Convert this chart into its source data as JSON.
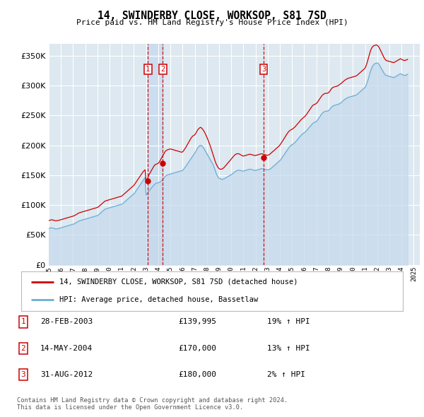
{
  "title": "14, SWINDERBY CLOSE, WORKSOP, S81 7SD",
  "subtitle": "Price paid vs. HM Land Registry's House Price Index (HPI)",
  "ytick_values": [
    0,
    50000,
    100000,
    150000,
    200000,
    250000,
    300000,
    350000
  ],
  "ylim": [
    0,
    370000
  ],
  "xlim_start": 1995.0,
  "xlim_end": 2025.5,
  "background_color": "#dde8f0",
  "grid_color": "#ffffff",
  "transactions": [
    {
      "num": 1,
      "date": "28-FEB-2003",
      "price": 139995,
      "pct": "19%",
      "direction": "↑",
      "x": 2003.15
    },
    {
      "num": 2,
      "date": "14-MAY-2004",
      "price": 170000,
      "pct": "13%",
      "direction": "↑",
      "x": 2004.37
    },
    {
      "num": 3,
      "date": "31-AUG-2012",
      "price": 180000,
      "pct": "2%",
      "direction": "↑",
      "x": 2012.66
    }
  ],
  "red_line_label": "14, SWINDERBY CLOSE, WORKSOP, S81 7SD (detached house)",
  "blue_line_label": "HPI: Average price, detached house, Bassetlaw",
  "footer_line1": "Contains HM Land Registry data © Crown copyright and database right 2024.",
  "footer_line2": "This data is licensed under the Open Government Licence v3.0.",
  "hpi_data_x": [
    1995.0,
    1995.083,
    1995.167,
    1995.25,
    1995.333,
    1995.417,
    1995.5,
    1995.583,
    1995.667,
    1995.75,
    1995.833,
    1995.917,
    1996.0,
    1996.083,
    1996.167,
    1996.25,
    1996.333,
    1996.417,
    1996.5,
    1996.583,
    1996.667,
    1996.75,
    1996.833,
    1996.917,
    1997.0,
    1997.083,
    1997.167,
    1997.25,
    1997.333,
    1997.417,
    1997.5,
    1997.583,
    1997.667,
    1997.75,
    1997.833,
    1997.917,
    1998.0,
    1998.083,
    1998.167,
    1998.25,
    1998.333,
    1998.417,
    1998.5,
    1998.583,
    1998.667,
    1998.75,
    1998.833,
    1998.917,
    1999.0,
    1999.083,
    1999.167,
    1999.25,
    1999.333,
    1999.417,
    1999.5,
    1999.583,
    1999.667,
    1999.75,
    1999.833,
    1999.917,
    2000.0,
    2000.083,
    2000.167,
    2000.25,
    2000.333,
    2000.417,
    2000.5,
    2000.583,
    2000.667,
    2000.75,
    2000.833,
    2000.917,
    2001.0,
    2001.083,
    2001.167,
    2001.25,
    2001.333,
    2001.417,
    2001.5,
    2001.583,
    2001.667,
    2001.75,
    2001.833,
    2001.917,
    2002.0,
    2002.083,
    2002.167,
    2002.25,
    2002.333,
    2002.417,
    2002.5,
    2002.583,
    2002.667,
    2002.75,
    2002.833,
    2002.917,
    2003.0,
    2003.083,
    2003.167,
    2003.25,
    2003.333,
    2003.417,
    2003.5,
    2003.583,
    2003.667,
    2003.75,
    2003.833,
    2003.917,
    2004.0,
    2004.083,
    2004.167,
    2004.25,
    2004.333,
    2004.417,
    2004.5,
    2004.583,
    2004.667,
    2004.75,
    2004.833,
    2004.917,
    2005.0,
    2005.083,
    2005.167,
    2005.25,
    2005.333,
    2005.417,
    2005.5,
    2005.583,
    2005.667,
    2005.75,
    2005.833,
    2005.917,
    2006.0,
    2006.083,
    2006.167,
    2006.25,
    2006.333,
    2006.417,
    2006.5,
    2006.583,
    2006.667,
    2006.75,
    2006.833,
    2006.917,
    2007.0,
    2007.083,
    2007.167,
    2007.25,
    2007.333,
    2007.417,
    2007.5,
    2007.583,
    2007.667,
    2007.75,
    2007.833,
    2007.917,
    2008.0,
    2008.083,
    2008.167,
    2008.25,
    2008.333,
    2008.417,
    2008.5,
    2008.583,
    2008.667,
    2008.75,
    2008.833,
    2008.917,
    2009.0,
    2009.083,
    2009.167,
    2009.25,
    2009.333,
    2009.417,
    2009.5,
    2009.583,
    2009.667,
    2009.75,
    2009.833,
    2009.917,
    2010.0,
    2010.083,
    2010.167,
    2010.25,
    2010.333,
    2010.417,
    2010.5,
    2010.583,
    2010.667,
    2010.75,
    2010.833,
    2010.917,
    2011.0,
    2011.083,
    2011.167,
    2011.25,
    2011.333,
    2011.417,
    2011.5,
    2011.583,
    2011.667,
    2011.75,
    2011.833,
    2011.917,
    2012.0,
    2012.083,
    2012.167,
    2012.25,
    2012.333,
    2012.417,
    2012.5,
    2012.583,
    2012.667,
    2012.75,
    2012.833,
    2012.917,
    2013.0,
    2013.083,
    2013.167,
    2013.25,
    2013.333,
    2013.417,
    2013.5,
    2013.583,
    2013.667,
    2013.75,
    2013.833,
    2013.917,
    2014.0,
    2014.083,
    2014.167,
    2014.25,
    2014.333,
    2014.417,
    2014.5,
    2014.583,
    2014.667,
    2014.75,
    2014.833,
    2014.917,
    2015.0,
    2015.083,
    2015.167,
    2015.25,
    2015.333,
    2015.417,
    2015.5,
    2015.583,
    2015.667,
    2015.75,
    2015.833,
    2015.917,
    2016.0,
    2016.083,
    2016.167,
    2016.25,
    2016.333,
    2016.417,
    2016.5,
    2016.583,
    2016.667,
    2016.75,
    2016.833,
    2016.917,
    2017.0,
    2017.083,
    2017.167,
    2017.25,
    2017.333,
    2017.417,
    2017.5,
    2017.583,
    2017.667,
    2017.75,
    2017.833,
    2017.917,
    2018.0,
    2018.083,
    2018.167,
    2018.25,
    2018.333,
    2018.417,
    2018.5,
    2018.583,
    2018.667,
    2018.75,
    2018.833,
    2018.917,
    2019.0,
    2019.083,
    2019.167,
    2019.25,
    2019.333,
    2019.417,
    2019.5,
    2019.583,
    2019.667,
    2019.75,
    2019.833,
    2019.917,
    2020.0,
    2020.083,
    2020.167,
    2020.25,
    2020.333,
    2020.417,
    2020.5,
    2020.583,
    2020.667,
    2020.75,
    2020.833,
    2020.917,
    2021.0,
    2021.083,
    2021.167,
    2021.25,
    2021.333,
    2021.417,
    2021.5,
    2021.583,
    2021.667,
    2021.75,
    2021.833,
    2021.917,
    2022.0,
    2022.083,
    2022.167,
    2022.25,
    2022.333,
    2022.417,
    2022.5,
    2022.583,
    2022.667,
    2022.75,
    2022.833,
    2022.917,
    2023.0,
    2023.083,
    2023.167,
    2023.25,
    2023.333,
    2023.417,
    2023.5,
    2023.583,
    2023.667,
    2023.75,
    2023.833,
    2023.917,
    2024.0,
    2024.083,
    2024.167,
    2024.25,
    2024.333,
    2024.417,
    2024.5
  ],
  "hpi_data_y": [
    61000,
    61500,
    61800,
    62000,
    61500,
    61000,
    60500,
    60000,
    60200,
    60500,
    61000,
    61500,
    62000,
    62500,
    63000,
    63500,
    64000,
    64500,
    65000,
    65500,
    66000,
    66500,
    67000,
    67500,
    68000,
    68500,
    69500,
    70500,
    71500,
    72500,
    73500,
    74000,
    74500,
    75000,
    75500,
    76000,
    76500,
    77000,
    77500,
    78000,
    78500,
    79000,
    79500,
    80000,
    80500,
    81000,
    81500,
    82000,
    82500,
    83500,
    85000,
    86500,
    88000,
    89500,
    91000,
    92500,
    93500,
    94000,
    94500,
    95000,
    95500,
    96000,
    96500,
    97000,
    97500,
    98000,
    98500,
    99000,
    99500,
    100000,
    100500,
    101000,
    101500,
    102500,
    104000,
    105500,
    107000,
    108500,
    110000,
    111500,
    113000,
    114500,
    116000,
    117500,
    119000,
    121000,
    123500,
    126000,
    128500,
    131000,
    133500,
    136000,
    138500,
    141000,
    143500,
    146000,
    117000,
    119000,
    121500,
    124000,
    126000,
    128000,
    130000,
    132000,
    134000,
    135500,
    136500,
    137000,
    137500,
    138000,
    139000,
    140000,
    142000,
    144000,
    146000,
    148000,
    149500,
    150500,
    151000,
    151500,
    152000,
    152500,
    153000,
    153500,
    154000,
    154500,
    155000,
    155500,
    156000,
    156500,
    157000,
    157500,
    158000,
    160000,
    162000,
    164500,
    167000,
    169500,
    172000,
    174500,
    177000,
    179500,
    182000,
    184500,
    187000,
    190000,
    193000,
    196000,
    198000,
    199500,
    200000,
    199000,
    197500,
    195000,
    192000,
    189000,
    186000,
    183000,
    180000,
    177000,
    174000,
    171000,
    168000,
    164000,
    159000,
    154000,
    150000,
    147000,
    145000,
    144000,
    143500,
    143000,
    143500,
    144000,
    145000,
    146000,
    147000,
    148000,
    149000,
    150000,
    151000,
    152000,
    153500,
    155000,
    156000,
    157000,
    158000,
    158500,
    158500,
    158000,
    157500,
    157000,
    157000,
    157500,
    158000,
    158500,
    159000,
    159500,
    160000,
    160000,
    159500,
    159000,
    158500,
    158000,
    158000,
    158500,
    159000,
    159500,
    160000,
    160500,
    161000,
    161000,
    160500,
    160000,
    159500,
    159000,
    159000,
    159500,
    160000,
    161000,
    162500,
    164000,
    165500,
    167000,
    168500,
    170000,
    171500,
    173000,
    174500,
    176500,
    179000,
    181500,
    184000,
    186500,
    189000,
    191500,
    194000,
    196500,
    198500,
    200000,
    201000,
    202000,
    203500,
    205000,
    207000,
    209000,
    211000,
    213000,
    215000,
    217000,
    218500,
    220000,
    221000,
    222500,
    224000,
    226000,
    228000,
    230000,
    232000,
    234000,
    236000,
    237500,
    238500,
    239000,
    240000,
    242000,
    244500,
    247000,
    249500,
    252000,
    254000,
    255500,
    256500,
    257000,
    257000,
    257500,
    258000,
    260000,
    262000,
    264000,
    265500,
    266500,
    267000,
    267500,
    268000,
    268500,
    269000,
    270000,
    271000,
    272500,
    274000,
    275500,
    277000,
    278000,
    279000,
    280000,
    280500,
    281000,
    281500,
    282000,
    282500,
    283000,
    283500,
    284000,
    285000,
    286500,
    288000,
    289500,
    291000,
    292500,
    294000,
    295500,
    297000,
    300000,
    305000,
    310000,
    316000,
    322000,
    327000,
    331000,
    334000,
    336000,
    337000,
    337500,
    338000,
    337000,
    335000,
    332000,
    329000,
    326000,
    323000,
    320000,
    318000,
    317000,
    316500,
    316000,
    315500,
    315000,
    314500,
    314000,
    313500,
    314000,
    315000,
    316000,
    317000,
    318000,
    319000,
    320000,
    319000,
    318000,
    317500,
    317000,
    317500,
    318000,
    319000
  ],
  "red_data_x": [
    1995.0,
    1995.083,
    1995.167,
    1995.25,
    1995.333,
    1995.417,
    1995.5,
    1995.583,
    1995.667,
    1995.75,
    1995.833,
    1995.917,
    1996.0,
    1996.083,
    1996.167,
    1996.25,
    1996.333,
    1996.417,
    1996.5,
    1996.583,
    1996.667,
    1996.75,
    1996.833,
    1996.917,
    1997.0,
    1997.083,
    1997.167,
    1997.25,
    1997.333,
    1997.417,
    1997.5,
    1997.583,
    1997.667,
    1997.75,
    1997.833,
    1997.917,
    1998.0,
    1998.083,
    1998.167,
    1998.25,
    1998.333,
    1998.417,
    1998.5,
    1998.583,
    1998.667,
    1998.75,
    1998.833,
    1998.917,
    1999.0,
    1999.083,
    1999.167,
    1999.25,
    1999.333,
    1999.417,
    1999.5,
    1999.583,
    1999.667,
    1999.75,
    1999.833,
    1999.917,
    2000.0,
    2000.083,
    2000.167,
    2000.25,
    2000.333,
    2000.417,
    2000.5,
    2000.583,
    2000.667,
    2000.75,
    2000.833,
    2000.917,
    2001.0,
    2001.083,
    2001.167,
    2001.25,
    2001.333,
    2001.417,
    2001.5,
    2001.583,
    2001.667,
    2001.75,
    2001.833,
    2001.917,
    2002.0,
    2002.083,
    2002.167,
    2002.25,
    2002.333,
    2002.417,
    2002.5,
    2002.583,
    2002.667,
    2002.75,
    2002.833,
    2002.917,
    2003.0,
    2003.083,
    2003.167,
    2003.25,
    2003.333,
    2003.417,
    2003.5,
    2003.583,
    2003.667,
    2003.75,
    2003.833,
    2003.917,
    2004.0,
    2004.083,
    2004.167,
    2004.25,
    2004.333,
    2004.417,
    2004.5,
    2004.583,
    2004.667,
    2004.75,
    2004.833,
    2004.917,
    2005.0,
    2005.083,
    2005.167,
    2005.25,
    2005.333,
    2005.417,
    2005.5,
    2005.583,
    2005.667,
    2005.75,
    2005.833,
    2005.917,
    2006.0,
    2006.083,
    2006.167,
    2006.25,
    2006.333,
    2006.417,
    2006.5,
    2006.583,
    2006.667,
    2006.75,
    2006.833,
    2006.917,
    2007.0,
    2007.083,
    2007.167,
    2007.25,
    2007.333,
    2007.417,
    2007.5,
    2007.583,
    2007.667,
    2007.75,
    2007.833,
    2007.917,
    2008.0,
    2008.083,
    2008.167,
    2008.25,
    2008.333,
    2008.417,
    2008.5,
    2008.583,
    2008.667,
    2008.75,
    2008.833,
    2008.917,
    2009.0,
    2009.083,
    2009.167,
    2009.25,
    2009.333,
    2009.417,
    2009.5,
    2009.583,
    2009.667,
    2009.75,
    2009.833,
    2009.917,
    2010.0,
    2010.083,
    2010.167,
    2010.25,
    2010.333,
    2010.417,
    2010.5,
    2010.583,
    2010.667,
    2010.75,
    2010.833,
    2010.917,
    2011.0,
    2011.083,
    2011.167,
    2011.25,
    2011.333,
    2011.417,
    2011.5,
    2011.583,
    2011.667,
    2011.75,
    2011.833,
    2011.917,
    2012.0,
    2012.083,
    2012.167,
    2012.25,
    2012.333,
    2012.417,
    2012.5,
    2012.583,
    2012.667,
    2012.75,
    2012.833,
    2012.917,
    2013.0,
    2013.083,
    2013.167,
    2013.25,
    2013.333,
    2013.417,
    2013.5,
    2013.583,
    2013.667,
    2013.75,
    2013.833,
    2013.917,
    2014.0,
    2014.083,
    2014.167,
    2014.25,
    2014.333,
    2014.417,
    2014.5,
    2014.583,
    2014.667,
    2014.75,
    2014.833,
    2014.917,
    2015.0,
    2015.083,
    2015.167,
    2015.25,
    2015.333,
    2015.417,
    2015.5,
    2015.583,
    2015.667,
    2015.75,
    2015.833,
    2015.917,
    2016.0,
    2016.083,
    2016.167,
    2016.25,
    2016.333,
    2016.417,
    2016.5,
    2016.583,
    2016.667,
    2016.75,
    2016.833,
    2016.917,
    2017.0,
    2017.083,
    2017.167,
    2017.25,
    2017.333,
    2017.417,
    2017.5,
    2017.583,
    2017.667,
    2017.75,
    2017.833,
    2017.917,
    2018.0,
    2018.083,
    2018.167,
    2018.25,
    2018.333,
    2018.417,
    2018.5,
    2018.583,
    2018.667,
    2018.75,
    2018.833,
    2018.917,
    2019.0,
    2019.083,
    2019.167,
    2019.25,
    2019.333,
    2019.417,
    2019.5,
    2019.583,
    2019.667,
    2019.75,
    2019.833,
    2019.917,
    2020.0,
    2020.083,
    2020.167,
    2020.25,
    2020.333,
    2020.417,
    2020.5,
    2020.583,
    2020.667,
    2020.75,
    2020.833,
    2020.917,
    2021.0,
    2021.083,
    2021.167,
    2021.25,
    2021.333,
    2021.417,
    2021.5,
    2021.583,
    2021.667,
    2021.75,
    2021.833,
    2021.917,
    2022.0,
    2022.083,
    2022.167,
    2022.25,
    2022.333,
    2022.417,
    2022.5,
    2022.583,
    2022.667,
    2022.75,
    2022.833,
    2022.917,
    2023.0,
    2023.083,
    2023.167,
    2023.25,
    2023.333,
    2023.417,
    2023.5,
    2023.583,
    2023.667,
    2023.75,
    2023.833,
    2023.917,
    2024.0,
    2024.083,
    2024.167,
    2024.25,
    2024.333,
    2024.417,
    2024.5
  ],
  "red_data_y": [
    74000,
    74500,
    75000,
    75500,
    75000,
    74500,
    74000,
    73500,
    73800,
    74000,
    74500,
    75000,
    75500,
    76000,
    76500,
    77000,
    77500,
    78000,
    78500,
    79000,
    79500,
    80000,
    80500,
    81000,
    81500,
    82000,
    83000,
    84000,
    85000,
    86000,
    87000,
    87500,
    88000,
    88500,
    89000,
    89500,
    90000,
    90500,
    91000,
    91500,
    92000,
    92500,
    93000,
    93500,
    94000,
    94500,
    95000,
    95500,
    96000,
    97000,
    98500,
    100000,
    101500,
    103000,
    104500,
    106000,
    107000,
    107500,
    108000,
    108500,
    109000,
    109500,
    110000,
    110500,
    111000,
    111500,
    112000,
    112500,
    113000,
    113500,
    114000,
    114500,
    115000,
    116500,
    118000,
    119500,
    121000,
    122500,
    124000,
    125500,
    127000,
    128500,
    130000,
    131500,
    133000,
    135500,
    138000,
    140500,
    143000,
    145500,
    148000,
    150500,
    153000,
    155500,
    157500,
    159000,
    139995,
    143000,
    147000,
    151000,
    154000,
    157000,
    160000,
    163000,
    166000,
    167500,
    168500,
    169000,
    170000,
    172000,
    175000,
    178000,
    181000,
    184000,
    187000,
    190000,
    191500,
    192500,
    193000,
    193500,
    194000,
    193500,
    193000,
    192500,
    192000,
    191500,
    191000,
    190500,
    190000,
    189500,
    189000,
    188500,
    189000,
    191000,
    193500,
    196000,
    199000,
    202000,
    205000,
    208000,
    211000,
    213500,
    215500,
    216500,
    217500,
    220000,
    223000,
    226000,
    228000,
    229500,
    230000,
    228500,
    226500,
    224000,
    221000,
    217500,
    213500,
    209500,
    205000,
    200500,
    195500,
    190000,
    184500,
    179000,
    174000,
    169500,
    166000,
    163000,
    161000,
    160000,
    160000,
    160500,
    161500,
    163000,
    165000,
    167000,
    169000,
    171000,
    173000,
    175000,
    177000,
    179000,
    181000,
    183000,
    184500,
    185500,
    186000,
    186000,
    185500,
    184500,
    183500,
    182500,
    182000,
    182500,
    183000,
    183500,
    184000,
    184500,
    185000,
    185000,
    184500,
    184000,
    183500,
    183000,
    183000,
    183500,
    184000,
    184500,
    185000,
    185500,
    186000,
    185500,
    185000,
    184500,
    184000,
    183500,
    183500,
    184000,
    185000,
    186500,
    188000,
    189500,
    191000,
    192500,
    194000,
    195500,
    197000,
    198500,
    200500,
    203000,
    205500,
    208000,
    211000,
    213500,
    216500,
    219000,
    221500,
    223500,
    225000,
    226000,
    227000,
    228000,
    229500,
    231000,
    233000,
    235000,
    237000,
    239000,
    241000,
    243000,
    244500,
    246000,
    247500,
    249000,
    251000,
    253500,
    256000,
    258500,
    261000,
    263500,
    266000,
    267500,
    268500,
    269000,
    270000,
    272000,
    274500,
    277000,
    279500,
    282000,
    284000,
    285500,
    286500,
    287000,
    287000,
    287500,
    288000,
    290000,
    292500,
    295000,
    296500,
    297500,
    298000,
    298500,
    299000,
    299500,
    300500,
    302000,
    303000,
    304500,
    306000,
    307500,
    309000,
    310000,
    311000,
    312000,
    312500,
    313000,
    313500,
    314000,
    314500,
    315000,
    315500,
    316000,
    317000,
    318500,
    320000,
    321500,
    323000,
    324500,
    326000,
    327500,
    329000,
    333000,
    338000,
    344000,
    350000,
    356000,
    361000,
    364000,
    366000,
    367000,
    367500,
    368000,
    367500,
    366000,
    363500,
    360000,
    356500,
    353000,
    349500,
    346000,
    343500,
    342000,
    341500,
    341000,
    340500,
    340000,
    339500,
    339000,
    338500,
    339000,
    340000,
    341000,
    342000,
    343000,
    344000,
    345000,
    344000,
    343000,
    342500,
    342000,
    342500,
    343000,
    344000
  ]
}
